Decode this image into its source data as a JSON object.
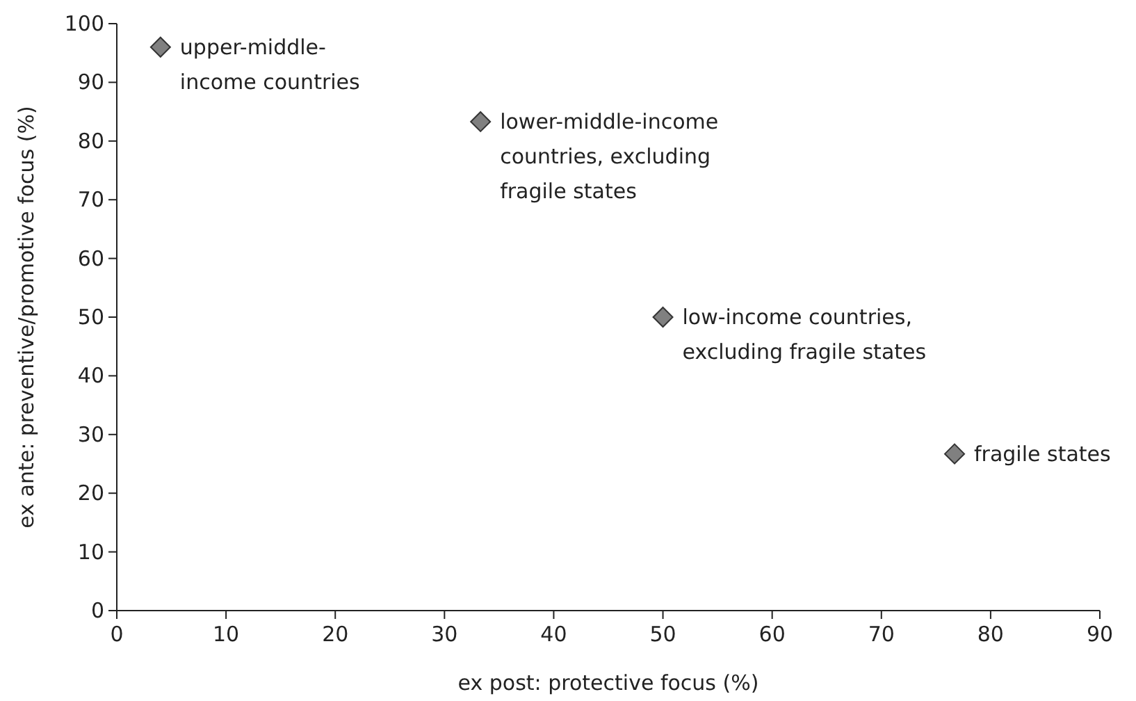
{
  "chart_data": {
    "type": "scatter",
    "xlabel": "ex post: protective focus (%)",
    "ylabel": "ex ante: preventive/promotive focus (%)",
    "x": [
      4,
      33.3,
      50,
      76.7
    ],
    "values": [
      96,
      83.3,
      50,
      26.7
    ],
    "color": "#808080",
    "marker": "diamond",
    "xlim": [
      0,
      90
    ],
    "xticks": [
      0,
      10,
      20,
      30,
      40,
      50,
      60,
      70,
      80,
      90
    ],
    "ylim": [
      0,
      100
    ],
    "yticks": [
      0,
      10,
      20,
      30,
      40,
      50,
      60,
      70,
      80,
      90,
      100
    ],
    "grid": false,
    "annotations": [
      {
        "text": "upper-middle-\nincome countries",
        "x": 4,
        "y": 96
      },
      {
        "text": "lower-middle-income\ncountries, excluding\nfragile states",
        "x": 33.3,
        "y": 83.3
      },
      {
        "text": "low-income countries,\nexcluding fragile states",
        "x": 50,
        "y": 50
      },
      {
        "text": "fragile states",
        "x": 76.7,
        "y": 26.7
      }
    ]
  }
}
